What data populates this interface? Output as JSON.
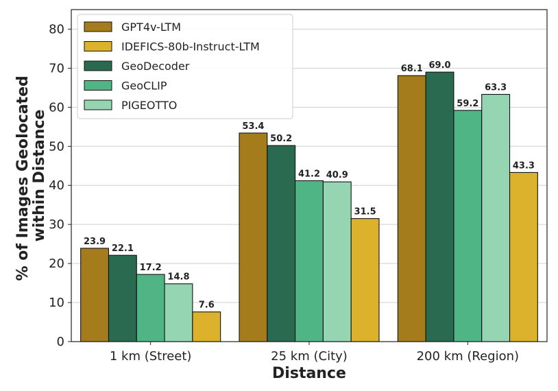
{
  "chart_data": {
    "type": "bar",
    "title": "",
    "xlabel": "Distance",
    "ylabel_line1": "% of Images Geolocated",
    "ylabel_line2": "within Distance",
    "ylim": [
      0,
      85
    ],
    "yticks": [
      0,
      10,
      20,
      30,
      40,
      50,
      60,
      70,
      80
    ],
    "grid": true,
    "legend_position": "top-left",
    "legend_order": [
      "GPT4v-LTM",
      "IDEFICS-80b-Instruct-LTM",
      "GeoDecoder",
      "GeoCLIP",
      "PIGEOTTO"
    ],
    "series_colors": {
      "GPT4v-LTM": "#a57c1b",
      "IDEFICS-80b-Instruct-LTM": "#dcb22c",
      "GeoDecoder": "#2a6a50",
      "GeoCLIP": "#4fb585",
      "PIGEOTTO": "#95d5b1"
    },
    "groups": [
      {
        "category": "1 km (Street)",
        "bars": [
          {
            "series": "GPT4v-LTM",
            "value": 23.9,
            "label": "23.9"
          },
          {
            "series": "GeoDecoder",
            "value": 22.1,
            "label": "22.1"
          },
          {
            "series": "GeoCLIP",
            "value": 17.2,
            "label": "17.2"
          },
          {
            "series": "PIGEOTTO",
            "value": 14.8,
            "label": "14.8"
          },
          {
            "series": "IDEFICS-80b-Instruct-LTM",
            "value": 7.6,
            "label": "7.6"
          }
        ]
      },
      {
        "category": "25 km (City)",
        "bars": [
          {
            "series": "GPT4v-LTM",
            "value": 53.4,
            "label": "53.4"
          },
          {
            "series": "GeoDecoder",
            "value": 50.2,
            "label": "50.2"
          },
          {
            "series": "GeoCLIP",
            "value": 41.2,
            "label": "41.2"
          },
          {
            "series": "PIGEOTTO",
            "value": 40.9,
            "label": "40.9"
          },
          {
            "series": "IDEFICS-80b-Instruct-LTM",
            "value": 31.5,
            "label": "31.5"
          }
        ]
      },
      {
        "category": "200 km (Region)",
        "bars": [
          {
            "series": "GPT4v-LTM",
            "value": 68.1,
            "label": "68.1"
          },
          {
            "series": "GeoDecoder",
            "value": 69.0,
            "label": "69.0"
          },
          {
            "series": "GeoCLIP",
            "value": 59.2,
            "label": "59.2"
          },
          {
            "series": "PIGEOTTO",
            "value": 63.3,
            "label": "63.3"
          },
          {
            "series": "IDEFICS-80b-Instruct-LTM",
            "value": 43.3,
            "label": "43.3"
          }
        ]
      }
    ]
  }
}
